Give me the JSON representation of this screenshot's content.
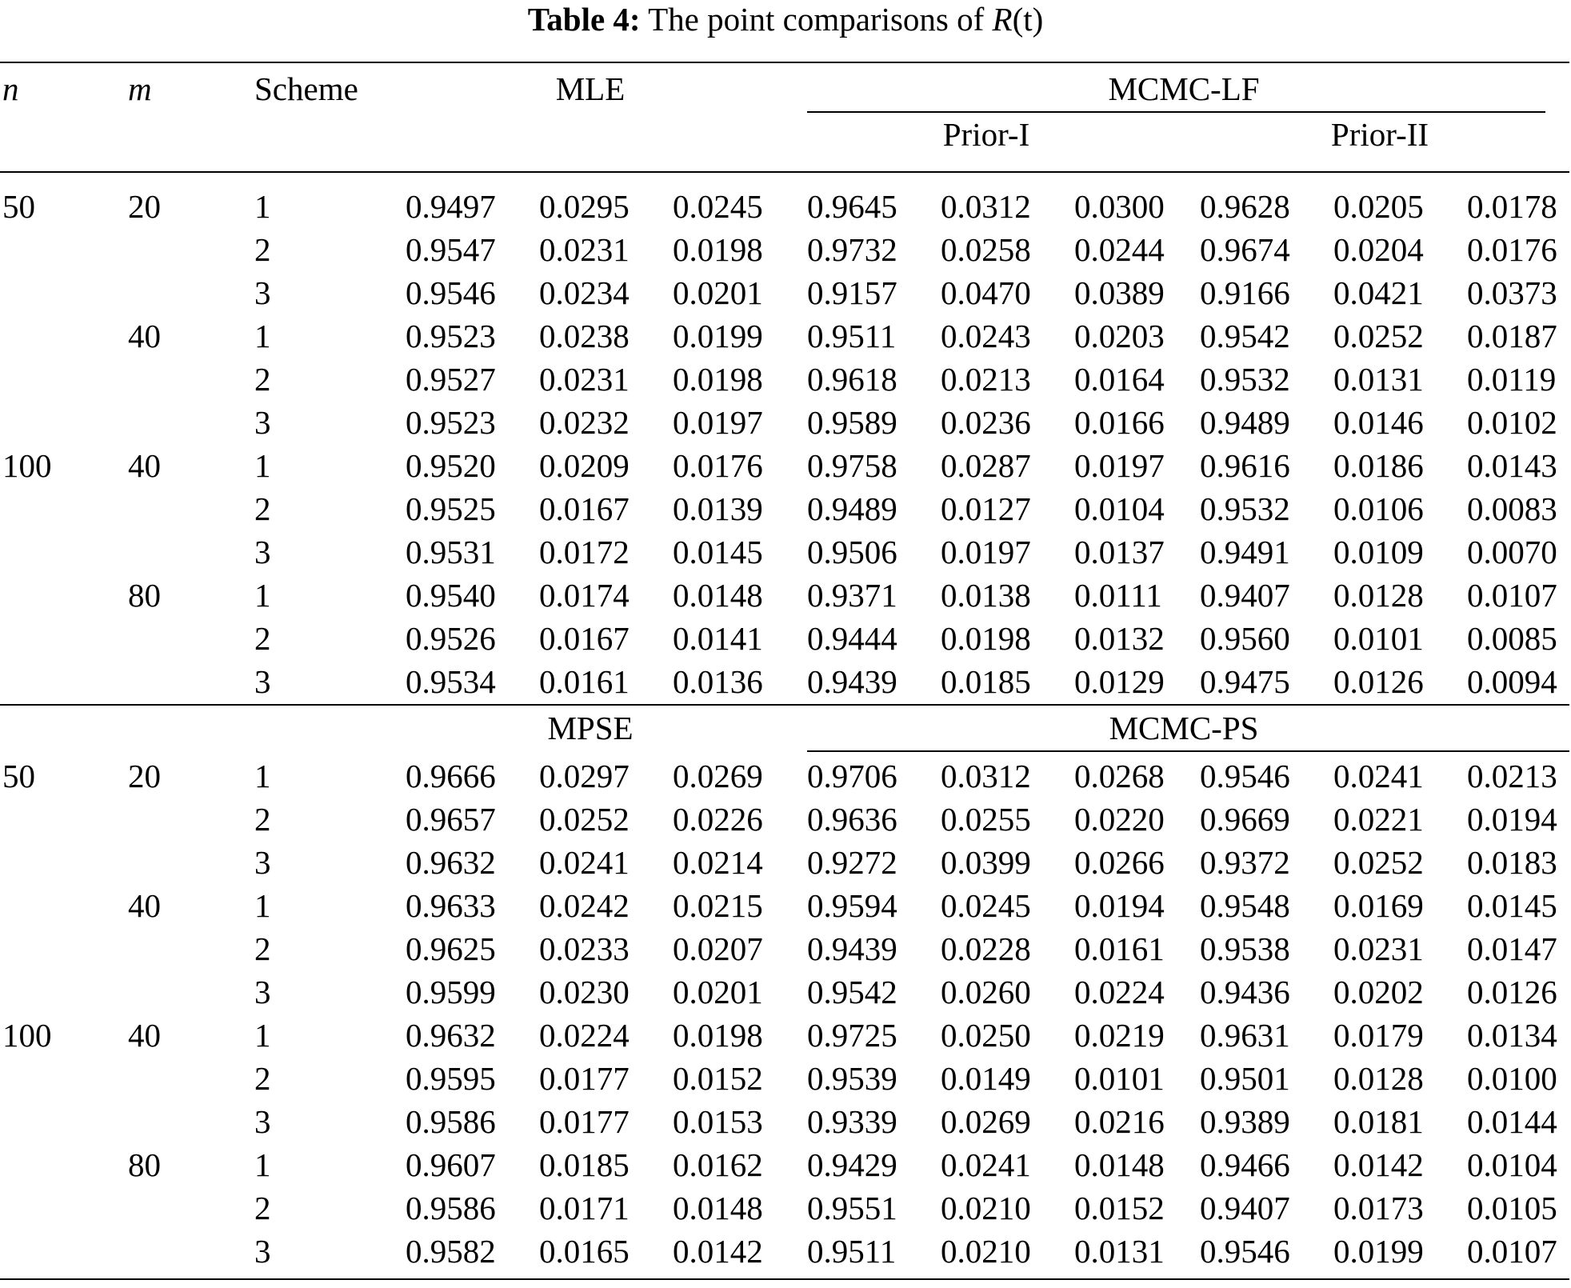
{
  "caption": {
    "label": "Table 4:",
    "text": "The point comparisons of",
    "math_symbol": "R",
    "math_arg": "(t)"
  },
  "headers": {
    "n": "n",
    "m": "m",
    "scheme": "Scheme",
    "block1_left": "MLE",
    "block1_right": "MCMC-LF",
    "prior_1": "Prior-I",
    "prior_2": "Prior-II",
    "block2_left": "MPSE",
    "block2_right": "MCMC-PS"
  },
  "blocks": [
    {
      "rows": [
        {
          "n": "50",
          "m": "20",
          "scheme": "1",
          "values": [
            "0.9497",
            "0.0295",
            "0.0245",
            "0.9645",
            "0.0312",
            "0.0300",
            "0.9628",
            "0.0205",
            "0.0178"
          ]
        },
        {
          "n": "",
          "m": "",
          "scheme": "2",
          "values": [
            "0.9547",
            "0.0231",
            "0.0198",
            "0.9732",
            "0.0258",
            "0.0244",
            "0.9674",
            "0.0204",
            "0.0176"
          ]
        },
        {
          "n": "",
          "m": "",
          "scheme": "3",
          "values": [
            "0.9546",
            "0.0234",
            "0.0201",
            "0.9157",
            "0.0470",
            "0.0389",
            "0.9166",
            "0.0421",
            "0.0373"
          ]
        },
        {
          "n": "",
          "m": "40",
          "scheme": "1",
          "values": [
            "0.9523",
            "0.0238",
            "0.0199",
            "0.9511",
            "0.0243",
            "0.0203",
            "0.9542",
            "0.0252",
            "0.0187"
          ]
        },
        {
          "n": "",
          "m": "",
          "scheme": "2",
          "values": [
            "0.9527",
            "0.0231",
            "0.0198",
            "0.9618",
            "0.0213",
            "0.0164",
            "0.9532",
            "0.0131",
            "0.0119"
          ]
        },
        {
          "n": "",
          "m": "",
          "scheme": "3",
          "values": [
            "0.9523",
            "0.0232",
            "0.0197",
            "0.9589",
            "0.0236",
            "0.0166",
            "0.9489",
            "0.0146",
            "0.0102"
          ]
        },
        {
          "n": "100",
          "m": "40",
          "scheme": "1",
          "values": [
            "0.9520",
            "0.0209",
            "0.0176",
            "0.9758",
            "0.0287",
            "0.0197",
            "0.9616",
            "0.0186",
            "0.0143"
          ]
        },
        {
          "n": "",
          "m": "",
          "scheme": "2",
          "values": [
            "0.9525",
            "0.0167",
            "0.0139",
            "0.9489",
            "0.0127",
            "0.0104",
            "0.9532",
            "0.0106",
            "0.0083"
          ]
        },
        {
          "n": "",
          "m": "",
          "scheme": "3",
          "values": [
            "0.9531",
            "0.0172",
            "0.0145",
            "0.9506",
            "0.0197",
            "0.0137",
            "0.9491",
            "0.0109",
            "0.0070"
          ]
        },
        {
          "n": "",
          "m": "80",
          "scheme": "1",
          "values": [
            "0.9540",
            "0.0174",
            "0.0148",
            "0.9371",
            "0.0138",
            "0.0111",
            "0.9407",
            "0.0128",
            "0.0107"
          ]
        },
        {
          "n": "",
          "m": "",
          "scheme": "2",
          "values": [
            "0.9526",
            "0.0167",
            "0.0141",
            "0.9444",
            "0.0198",
            "0.0132",
            "0.9560",
            "0.0101",
            "0.0085"
          ]
        },
        {
          "n": "",
          "m": "",
          "scheme": "3",
          "values": [
            "0.9534",
            "0.0161",
            "0.0136",
            "0.9439",
            "0.0185",
            "0.0129",
            "0.9475",
            "0.0126",
            "0.0094"
          ]
        }
      ]
    },
    {
      "rows": [
        {
          "n": "50",
          "m": "20",
          "scheme": "1",
          "values": [
            "0.9666",
            "0.0297",
            "0.0269",
            "0.9706",
            "0.0312",
            "0.0268",
            "0.9546",
            "0.0241",
            "0.0213"
          ]
        },
        {
          "n": "",
          "m": "",
          "scheme": "2",
          "values": [
            "0.9657",
            "0.0252",
            "0.0226",
            "0.9636",
            "0.0255",
            "0.0220",
            "0.9669",
            "0.0221",
            "0.0194"
          ]
        },
        {
          "n": "",
          "m": "",
          "scheme": "3",
          "values": [
            "0.9632",
            "0.0241",
            "0.0214",
            "0.9272",
            "0.0399",
            "0.0266",
            "0.9372",
            "0.0252",
            "0.0183"
          ]
        },
        {
          "n": "",
          "m": "40",
          "scheme": "1",
          "values": [
            "0.9633",
            "0.0242",
            "0.0215",
            "0.9594",
            "0.0245",
            "0.0194",
            "0.9548",
            "0.0169",
            "0.0145"
          ]
        },
        {
          "n": "",
          "m": "",
          "scheme": "2",
          "values": [
            "0.9625",
            "0.0233",
            "0.0207",
            "0.9439",
            "0.0228",
            "0.0161",
            "0.9538",
            "0.0231",
            "0.0147"
          ]
        },
        {
          "n": "",
          "m": "",
          "scheme": "3",
          "values": [
            "0.9599",
            "0.0230",
            "0.0201",
            "0.9542",
            "0.0260",
            "0.0224",
            "0.9436",
            "0.0202",
            "0.0126"
          ]
        },
        {
          "n": "100",
          "m": "40",
          "scheme": "1",
          "values": [
            "0.9632",
            "0.0224",
            "0.0198",
            "0.9725",
            "0.0250",
            "0.0219",
            "0.9631",
            "0.0179",
            "0.0134"
          ]
        },
        {
          "n": "",
          "m": "",
          "scheme": "2",
          "values": [
            "0.9595",
            "0.0177",
            "0.0152",
            "0.9539",
            "0.0149",
            "0.0101",
            "0.9501",
            "0.0128",
            "0.0100"
          ]
        },
        {
          "n": "",
          "m": "",
          "scheme": "3",
          "values": [
            "0.9586",
            "0.0177",
            "0.0153",
            "0.9339",
            "0.0269",
            "0.0216",
            "0.9389",
            "0.0181",
            "0.0144"
          ]
        },
        {
          "n": "",
          "m": "80",
          "scheme": "1",
          "values": [
            "0.9607",
            "0.0185",
            "0.0162",
            "0.9429",
            "0.0241",
            "0.0148",
            "0.9466",
            "0.0142",
            "0.0104"
          ]
        },
        {
          "n": "",
          "m": "",
          "scheme": "2",
          "values": [
            "0.9586",
            "0.0171",
            "0.0148",
            "0.9551",
            "0.0210",
            "0.0152",
            "0.9407",
            "0.0173",
            "0.0105"
          ]
        },
        {
          "n": "",
          "m": "",
          "scheme": "3",
          "values": [
            "0.9582",
            "0.0165",
            "0.0142",
            "0.9511",
            "0.0210",
            "0.0131",
            "0.9546",
            "0.0199",
            "0.0107"
          ]
        }
      ]
    }
  ]
}
